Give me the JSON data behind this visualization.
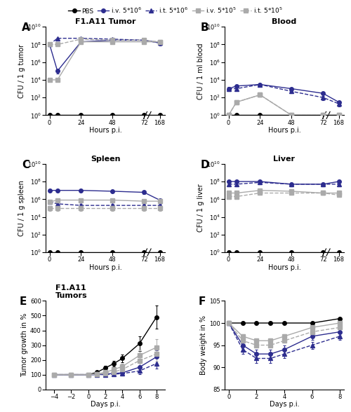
{
  "time_cfu": [
    0,
    6,
    24,
    48,
    72,
    168
  ],
  "panel_A": {
    "title": "F1.A11 Tumor",
    "ylabel": "CFU / 1 g tumor",
    "series": {
      "PBS": {
        "y": [
          1.0,
          1.0,
          1.0,
          1.0,
          1.0,
          1.0
        ],
        "ye": [
          0,
          0,
          0,
          0,
          0,
          0
        ]
      },
      "iv_high": {
        "y": [
          100000000.0,
          100000.0,
          200000000.0,
          300000000.0,
          300000000.0,
          150000000.0
        ],
        "ye": [
          30000000.0,
          50000.0,
          50000000.0,
          80000000.0,
          50000000.0,
          50000000.0
        ]
      },
      "it_high": {
        "y": [
          100000000.0,
          500000000.0,
          500000000.0,
          400000000.0,
          300000000.0,
          150000000.0
        ],
        "ye": [
          20000000.0,
          100000000.0,
          100000000.0,
          80000000.0,
          50000000.0,
          80000000.0
        ]
      },
      "iv_low": {
        "y": [
          10000.0,
          10000.0,
          200000000.0,
          200000000.0,
          200000000.0,
          200000000.0
        ],
        "ye": [
          3000.0,
          3000.0,
          60000000.0,
          50000000.0,
          50000000.0,
          50000000.0
        ]
      },
      "it_low": {
        "y": [
          100000000.0,
          100000000.0,
          400000000.0,
          300000000.0,
          300000000.0,
          200000000.0
        ],
        "ye": [
          20000000.0,
          20000000.0,
          80000000.0,
          50000000.0,
          50000000.0,
          50000000.0
        ]
      }
    }
  },
  "panel_B": {
    "title": "Blood",
    "ylabel": "CFU / 1 ml blood",
    "series": {
      "PBS": {
        "y": [
          1.0,
          1.0,
          1.0,
          1.0,
          1.0,
          1.0
        ],
        "ye": [
          0,
          0,
          0,
          0,
          0,
          0
        ]
      },
      "iv_high": {
        "y": [
          1000.0,
          2000.0,
          3000.0,
          1000.0,
          300.0,
          30.0
        ],
        "ye": [
          500.0,
          500.0,
          800.0,
          300.0,
          100.0,
          10.0
        ]
      },
      "it_high": {
        "y": [
          1000.0,
          1000.0,
          3000.0,
          500.0,
          100.0,
          20.0
        ],
        "ye": [
          300.0,
          300.0,
          800.0,
          200.0,
          50.0,
          10.0
        ]
      },
      "iv_low": {
        "y": [
          1.0,
          30.0,
          200.0,
          1.0,
          1.0,
          1.0
        ],
        "ye": [
          0,
          10.0,
          80.0,
          0,
          0,
          0
        ]
      },
      "it_low": {
        "y": [
          1.0,
          30.0,
          200.0,
          1.0,
          1.0,
          1.0
        ],
        "ye": [
          0,
          10.0,
          80.0,
          0,
          0,
          0
        ]
      }
    }
  },
  "panel_C": {
    "title": "Spleen",
    "ylabel": "CFU / 1 g spleen",
    "series": {
      "PBS": {
        "y": [
          1.0,
          1.0,
          1.0,
          1.0,
          1.0,
          1.0
        ],
        "ye": [
          0,
          0,
          0,
          0,
          0,
          0
        ]
      },
      "iv_high": {
        "y": [
          10000000.0,
          10000000.0,
          10000000.0,
          8000000.0,
          6000000.0,
          800000.0
        ],
        "ye": [
          3000000.0,
          3000000.0,
          3000000.0,
          2000000.0,
          2000000.0,
          300000.0
        ]
      },
      "it_high": {
        "y": [
          500000.0,
          300000.0,
          200000.0,
          200000.0,
          200000.0,
          200000.0
        ],
        "ye": [
          200000.0,
          100000.0,
          80000.0,
          80000.0,
          80000.0,
          80000.0
        ]
      },
      "iv_low": {
        "y": [
          500000.0,
          800000.0,
          800000.0,
          800000.0,
          600000.0,
          600000.0
        ],
        "ye": [
          200000.0,
          300000.0,
          300000.0,
          300000.0,
          200000.0,
          200000.0
        ]
      },
      "it_low": {
        "y": [
          100000.0,
          100000.0,
          100000.0,
          100000.0,
          100000.0,
          100000.0
        ],
        "ye": [
          50000.0,
          50000.0,
          50000.0,
          50000.0,
          50000.0,
          50000.0
        ]
      }
    }
  },
  "panel_D": {
    "title": "Liver",
    "ylabel": "CFU / 1 g liver",
    "series": {
      "PBS": {
        "y": [
          1.0,
          1.0,
          1.0,
          1.0,
          1.0,
          1.0
        ],
        "ye": [
          0,
          0,
          0,
          0,
          0,
          0
        ]
      },
      "iv_high": {
        "y": [
          100000000.0,
          100000000.0,
          100000000.0,
          50000000.0,
          50000000.0,
          100000000.0
        ],
        "ye": [
          30000000.0,
          30000000.0,
          30000000.0,
          20000000.0,
          20000000.0,
          50000000.0
        ]
      },
      "it_high": {
        "y": [
          50000000.0,
          50000000.0,
          80000000.0,
          50000000.0,
          50000000.0,
          50000000.0
        ],
        "ye": [
          20000000.0,
          20000000.0,
          30000000.0,
          20000000.0,
          20000000.0,
          20000000.0
        ]
      },
      "iv_low": {
        "y": [
          5000000.0,
          5000000.0,
          10000000.0,
          8000000.0,
          5000000.0,
          5000000.0
        ],
        "ye": [
          2000000.0,
          2000000.0,
          5000000.0,
          3000000.0,
          2000000.0,
          2000000.0
        ]
      },
      "it_low": {
        "y": [
          2000000.0,
          2000000.0,
          5000000.0,
          5000000.0,
          5000000.0,
          3000000.0
        ],
        "ye": [
          800000.0,
          800000.0,
          2000000.0,
          2000000.0,
          2000000.0,
          1000000.0
        ]
      }
    }
  },
  "panel_E": {
    "title": "F1.A11\nTumors",
    "ylabel": "Tumor growth in %",
    "xlabel": "Days p.i.",
    "time": [
      -4,
      -2,
      0,
      1,
      2,
      3,
      4,
      6,
      8
    ],
    "ylim": [
      0,
      600
    ],
    "yticks": [
      0,
      100,
      200,
      300,
      400,
      500,
      600
    ],
    "series": {
      "PBS": {
        "y": [
          100,
          100,
          100,
          115,
          145,
          175,
          210,
          310,
          490
        ],
        "ye": [
          5,
          5,
          5,
          10,
          15,
          20,
          25,
          50,
          80
        ]
      },
      "iv_high": {
        "y": [
          100,
          100,
          100,
          100,
          103,
          108,
          112,
          150,
          220
        ],
        "ye": [
          5,
          5,
          5,
          8,
          10,
          12,
          15,
          30,
          45
        ]
      },
      "it_high": {
        "y": [
          100,
          100,
          100,
          100,
          100,
          103,
          107,
          125,
          175
        ],
        "ye": [
          5,
          5,
          5,
          8,
          8,
          10,
          12,
          20,
          35
        ]
      },
      "iv_low": {
        "y": [
          100,
          100,
          100,
          105,
          115,
          135,
          155,
          230,
          285
        ],
        "ye": [
          5,
          5,
          5,
          8,
          10,
          15,
          20,
          40,
          55
        ]
      },
      "it_low": {
        "y": [
          100,
          100,
          100,
          102,
          108,
          118,
          135,
          195,
          240
        ],
        "ye": [
          5,
          5,
          5,
          8,
          10,
          12,
          18,
          35,
          50
        ]
      }
    }
  },
  "panel_F": {
    "title": "",
    "ylabel": "Body weight in %",
    "xlabel": "Days p.i.",
    "time": [
      0,
      1,
      2,
      3,
      4,
      6,
      8
    ],
    "ylim": [
      85,
      105
    ],
    "yticks": [
      85,
      90,
      95,
      100,
      105
    ],
    "series": {
      "PBS": {
        "y": [
          100,
          100,
          100,
          100,
          100,
          100,
          101
        ],
        "ye": [
          0.3,
          0.3,
          0.3,
          0.3,
          0.3,
          0.3,
          0.3
        ]
      },
      "iv_high": {
        "y": [
          100,
          95,
          93,
          93,
          94,
          97,
          98
        ],
        "ye": [
          0.5,
          1.0,
          1.0,
          1.0,
          1.0,
          0.8,
          0.8
        ]
      },
      "it_high": {
        "y": [
          100,
          94,
          92,
          92,
          93,
          95,
          97
        ],
        "ye": [
          0.5,
          1.0,
          1.0,
          1.0,
          1.0,
          0.8,
          0.8
        ]
      },
      "iv_low": {
        "y": [
          100,
          97,
          96,
          96,
          97,
          99,
          100
        ],
        "ye": [
          0.3,
          0.5,
          0.5,
          0.5,
          0.5,
          0.3,
          0.3
        ]
      },
      "it_low": {
        "y": [
          100,
          96,
          95,
          95,
          96,
          98,
          99
        ],
        "ye": [
          0.3,
          0.5,
          0.5,
          0.5,
          0.5,
          0.3,
          0.3
        ]
      }
    }
  }
}
